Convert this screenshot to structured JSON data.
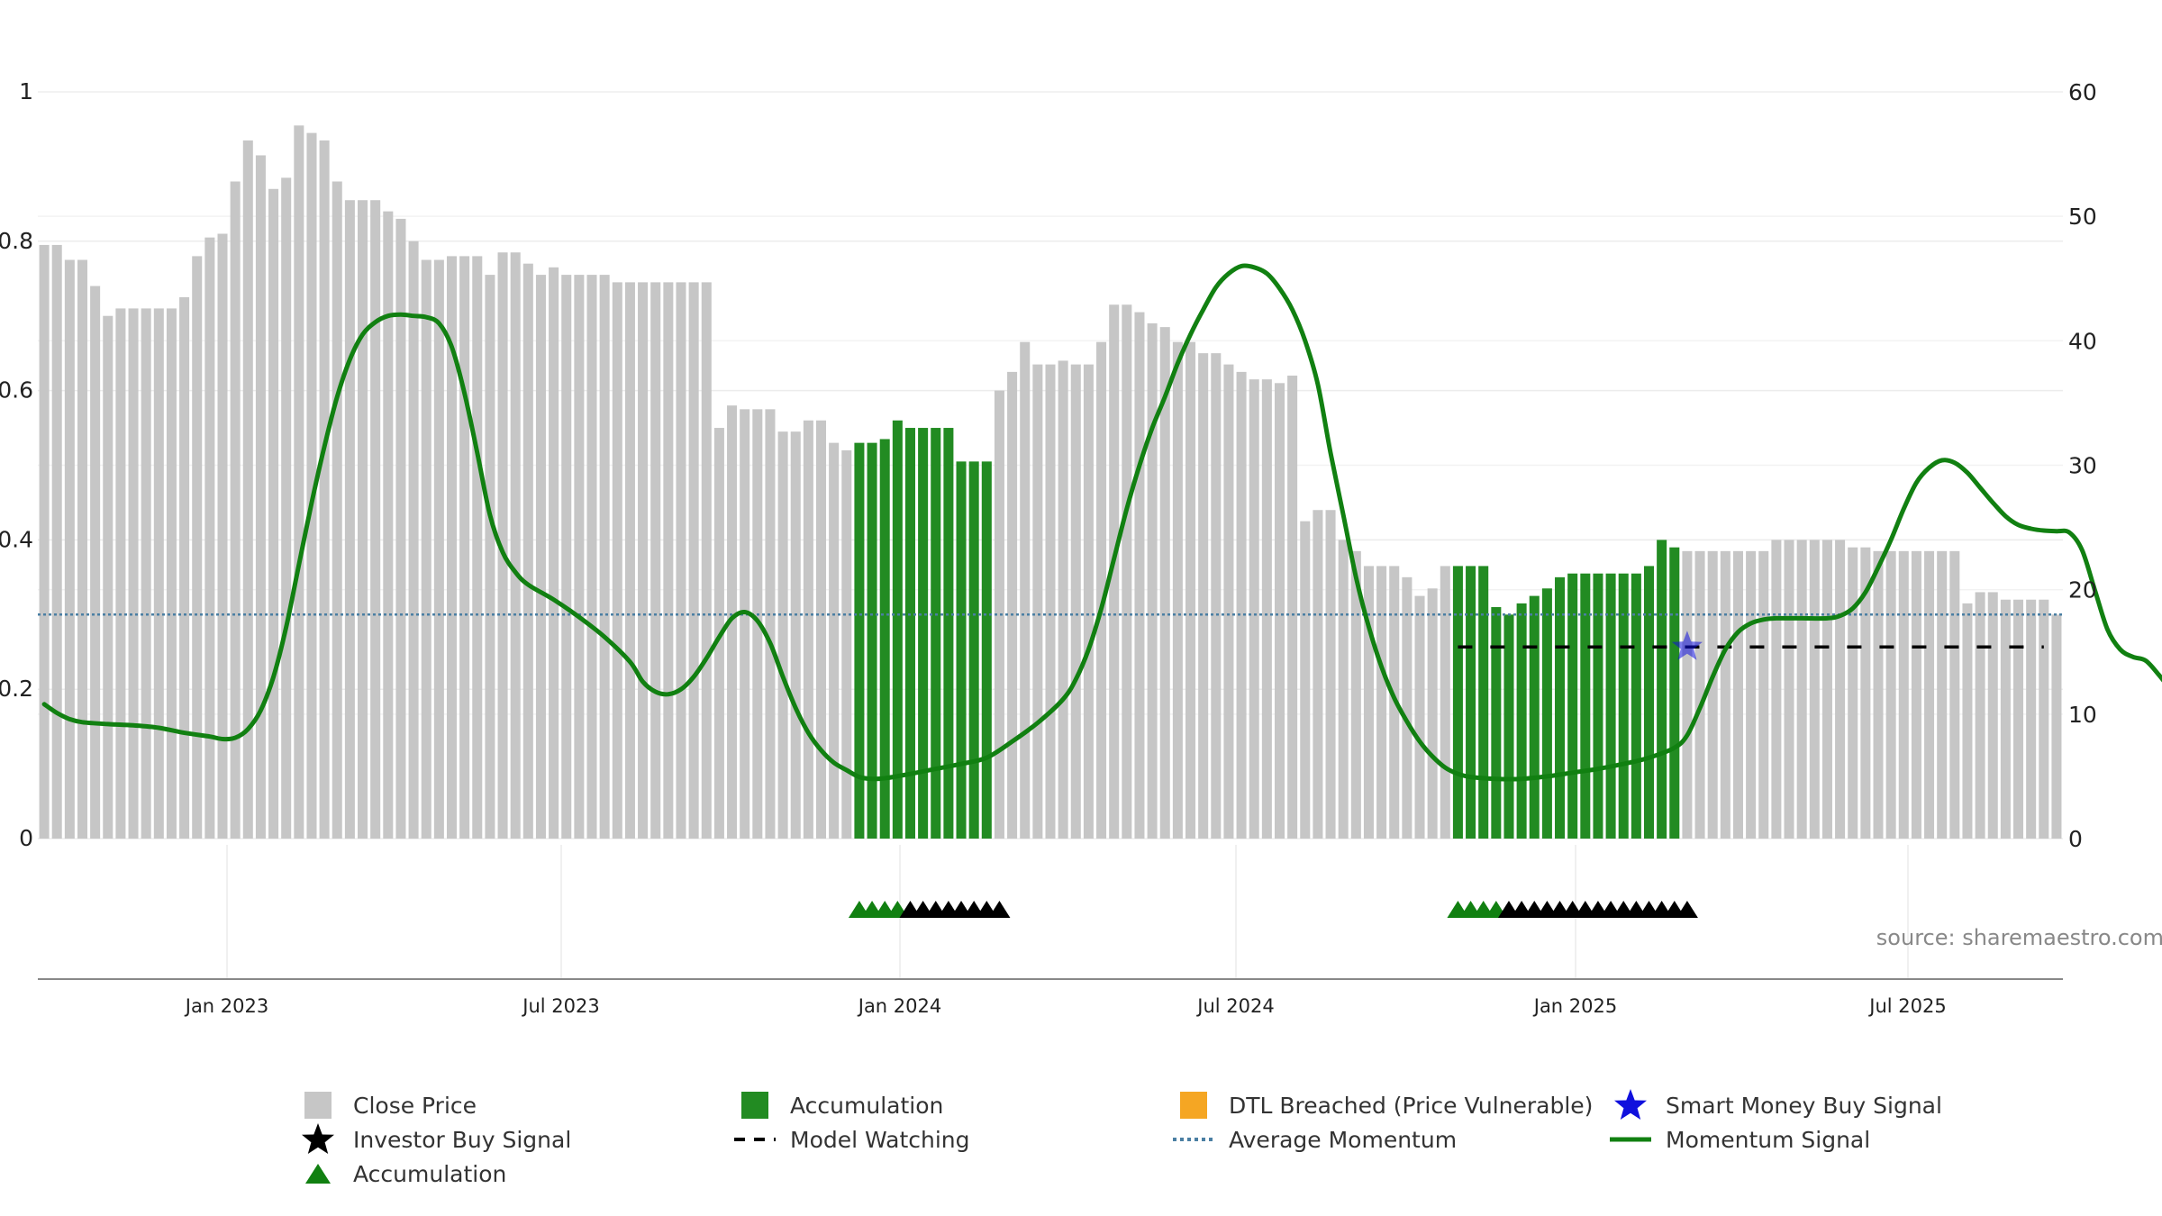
{
  "chart_data": {
    "type": "bar",
    "source_text": "source: sharemaestro.com",
    "x_ticks": [
      "Jan 2023",
      "Jul 2023",
      "Jan 2024",
      "Jul 2024",
      "Jan 2025",
      "Jul 2025"
    ],
    "left_axis": {
      "ylim": [
        0,
        1
      ],
      "ticks": [
        "0",
        "0.2",
        "0.4",
        "0.6",
        "0.8",
        "1"
      ]
    },
    "right_axis": {
      "ylim": [
        0,
        60
      ],
      "ticks": [
        "0",
        "10",
        "20",
        "30",
        "40",
        "50",
        "60"
      ]
    },
    "grid": true,
    "colors": {
      "close_price": "#c6c6c6",
      "accumulation": "#228b22",
      "dtl": "#f5a623",
      "smart_money": "#1010dd",
      "investor": "#000000",
      "avg_momentum": "#4a7fa3",
      "momentum": "#118011",
      "model_watching": "#000000"
    },
    "close_price": [
      0.795,
      0.795,
      0.775,
      0.775,
      0.74,
      0.7,
      0.71,
      0.71,
      0.71,
      0.71,
      0.71,
      0.725,
      0.78,
      0.805,
      0.81,
      0.88,
      0.935,
      0.915,
      0.87,
      0.885,
      0.955,
      0.945,
      0.935,
      0.88,
      0.855,
      0.855,
      0.855,
      0.84,
      0.83,
      0.8,
      0.775,
      0.775,
      0.78,
      0.78,
      0.78,
      0.755,
      0.785,
      0.785,
      0.77,
      0.755,
      0.765,
      0.755,
      0.755,
      0.755,
      0.755,
      0.745,
      0.745,
      0.745,
      0.745,
      0.745,
      0.745,
      0.745,
      0.745,
      0.55,
      0.58,
      0.575,
      0.575,
      0.575,
      0.545,
      0.545,
      0.56,
      0.56,
      0.53,
      0.52,
      0.53,
      0.53,
      0.535,
      0.56,
      0.55,
      0.55,
      0.55,
      0.55,
      0.505,
      0.505,
      0.505,
      0.6,
      0.625,
      0.665,
      0.635,
      0.635,
      0.64,
      0.635,
      0.635,
      0.665,
      0.715,
      0.715,
      0.705,
      0.69,
      0.685,
      0.665,
      0.665,
      0.65,
      0.65,
      0.635,
      0.625,
      0.615,
      0.615,
      0.61,
      0.62,
      0.425,
      0.44,
      0.44,
      0.4,
      0.385,
      0.365,
      0.365,
      0.365,
      0.35,
      0.325,
      0.335,
      0.365,
      0.365,
      0.365,
      0.365,
      0.31,
      0.3,
      0.315,
      0.325,
      0.335,
      0.35,
      0.355,
      0.355,
      0.355,
      0.355,
      0.355,
      0.355,
      0.365,
      0.4,
      0.39,
      0.385,
      0.385,
      0.385,
      0.385,
      0.385,
      0.385,
      0.385,
      0.4,
      0.4,
      0.4,
      0.4,
      0.4,
      0.4,
      0.39,
      0.39,
      0.385,
      0.385,
      0.385,
      0.385,
      0.385,
      0.385,
      0.385,
      0.315,
      0.33,
      0.33,
      0.32,
      0.32,
      0.32,
      0.32,
      0.3
    ],
    "accumulation_bar_ranges": [
      [
        64,
        74
      ],
      [
        111,
        128
      ]
    ],
    "investor_signal_count": {
      "series": "triangles",
      "groups": [
        {
          "start": 64,
          "green": 4,
          "black": 8
        },
        {
          "start": 111,
          "green": 4,
          "black": 15
        }
      ]
    },
    "smart_money_buy_signal": {
      "bar": 129,
      "value": 15.4
    },
    "model_watching": {
      "value": 15.4,
      "from_bar": 111,
      "to_bar": 157
    },
    "average_momentum": 18.0,
    "momentum_signal": [
      [
        0,
        10.8
      ],
      [
        1,
        10.1
      ],
      [
        2,
        9.6
      ],
      [
        3,
        9.35
      ],
      [
        5,
        9.2
      ],
      [
        7,
        9.1
      ],
      [
        9,
        8.9
      ],
      [
        11,
        8.5
      ],
      [
        13,
        8.2
      ],
      [
        14,
        8.0
      ],
      [
        15,
        8.1
      ],
      [
        16,
        8.8
      ],
      [
        17,
        10.3
      ],
      [
        18,
        13
      ],
      [
        19,
        17
      ],
      [
        20,
        22
      ],
      [
        21,
        27
      ],
      [
        22,
        31.5
      ],
      [
        23,
        35.5
      ],
      [
        24,
        38.5
      ],
      [
        25,
        40.5
      ],
      [
        26,
        41.5
      ],
      [
        27,
        42
      ],
      [
        28,
        42.1
      ],
      [
        29,
        42
      ],
      [
        30,
        41.9
      ],
      [
        31,
        41.4
      ],
      [
        32,
        39.5
      ],
      [
        33,
        35.8
      ],
      [
        34,
        31
      ],
      [
        35,
        26
      ],
      [
        36,
        23
      ],
      [
        37,
        21.4
      ],
      [
        38,
        20.4
      ],
      [
        40,
        19.2
      ],
      [
        42,
        17.8
      ],
      [
        44,
        16.2
      ],
      [
        46,
        14.2
      ],
      [
        47,
        12.6
      ],
      [
        48,
        11.8
      ],
      [
        49,
        11.6
      ],
      [
        50,
        12
      ],
      [
        51,
        13
      ],
      [
        52,
        14.5
      ],
      [
        53,
        16.2
      ],
      [
        54,
        17.7
      ],
      [
        55,
        18.2
      ],
      [
        56,
        17.5
      ],
      [
        57,
        15.7
      ],
      [
        58,
        13
      ],
      [
        59,
        10.5
      ],
      [
        60,
        8.5
      ],
      [
        61,
        7.1
      ],
      [
        62,
        6.1
      ],
      [
        63,
        5.5
      ],
      [
        64,
        4.95
      ],
      [
        65,
        4.8
      ],
      [
        66,
        4.85
      ],
      [
        68,
        5.2
      ],
      [
        70,
        5.6
      ],
      [
        72,
        6.0
      ],
      [
        74,
        6.5
      ],
      [
        76,
        7.8
      ],
      [
        78,
        9.3
      ],
      [
        80,
        11.2
      ],
      [
        81,
        12.8
      ],
      [
        82,
        15.2
      ],
      [
        83,
        18.5
      ],
      [
        84,
        22.5
      ],
      [
        85,
        26.5
      ],
      [
        86,
        30
      ],
      [
        87,
        33
      ],
      [
        88,
        35.5
      ],
      [
        89,
        38.2
      ],
      [
        90,
        40.5
      ],
      [
        91,
        42.5
      ],
      [
        92,
        44.3
      ],
      [
        93,
        45.4
      ],
      [
        94,
        46
      ],
      [
        95,
        45.9
      ],
      [
        96,
        45.4
      ],
      [
        97,
        44.2
      ],
      [
        98,
        42.5
      ],
      [
        99,
        40
      ],
      [
        100,
        36.5
      ],
      [
        101,
        31
      ],
      [
        102,
        26
      ],
      [
        103,
        21
      ],
      [
        104,
        17
      ],
      [
        105,
        13.8
      ],
      [
        106,
        11.3
      ],
      [
        107,
        9.4
      ],
      [
        108,
        7.8
      ],
      [
        109,
        6.6
      ],
      [
        110,
        5.7
      ],
      [
        111,
        5.2
      ],
      [
        112,
        4.95
      ],
      [
        114,
        4.8
      ],
      [
        116,
        4.8
      ],
      [
        118,
        5.0
      ],
      [
        120,
        5.3
      ],
      [
        122,
        5.6
      ],
      [
        124,
        6.0
      ],
      [
        126,
        6.5
      ],
      [
        128,
        7.3
      ],
      [
        129,
        8.3
      ],
      [
        130,
        10.5
      ],
      [
        131,
        13
      ],
      [
        132,
        15.2
      ],
      [
        133,
        16.6
      ],
      [
        134,
        17.3
      ],
      [
        135,
        17.6
      ],
      [
        136,
        17.7
      ],
      [
        138,
        17.7
      ],
      [
        140,
        17.7
      ],
      [
        141,
        17.9
      ],
      [
        142,
        18.5
      ],
      [
        143,
        19.8
      ],
      [
        144,
        21.8
      ],
      [
        145,
        24
      ],
      [
        146,
        26.5
      ],
      [
        147,
        28.6
      ],
      [
        148,
        29.8
      ],
      [
        149,
        30.4
      ],
      [
        150,
        30.2
      ],
      [
        151,
        29.4
      ],
      [
        152,
        28.2
      ],
      [
        153,
        27
      ],
      [
        154,
        25.9
      ],
      [
        155,
        25.2
      ],
      [
        156,
        24.9
      ],
      [
        157,
        24.75
      ],
      [
        158,
        24.7
      ],
      [
        159,
        24.6
      ],
      [
        160,
        23.2
      ],
      [
        161,
        20
      ],
      [
        162,
        16.8
      ],
      [
        163,
        15.2
      ],
      [
        164,
        14.6
      ],
      [
        165,
        14.3
      ],
      [
        166,
        13.2
      ],
      [
        167,
        11.9
      ]
    ]
  },
  "legend": {
    "close_price": "Close Price",
    "accumulation_bar": "Accumulation",
    "dtl_breached": "DTL Breached (Price Vulnerable)",
    "smart_money": "Smart Money Buy Signal",
    "investor_buy": "Investor Buy Signal",
    "model_watching": "Model Watching",
    "average_momentum": "Average Momentum",
    "momentum_signal": "Momentum Signal",
    "accumulation_triangle": "Accumulation"
  }
}
